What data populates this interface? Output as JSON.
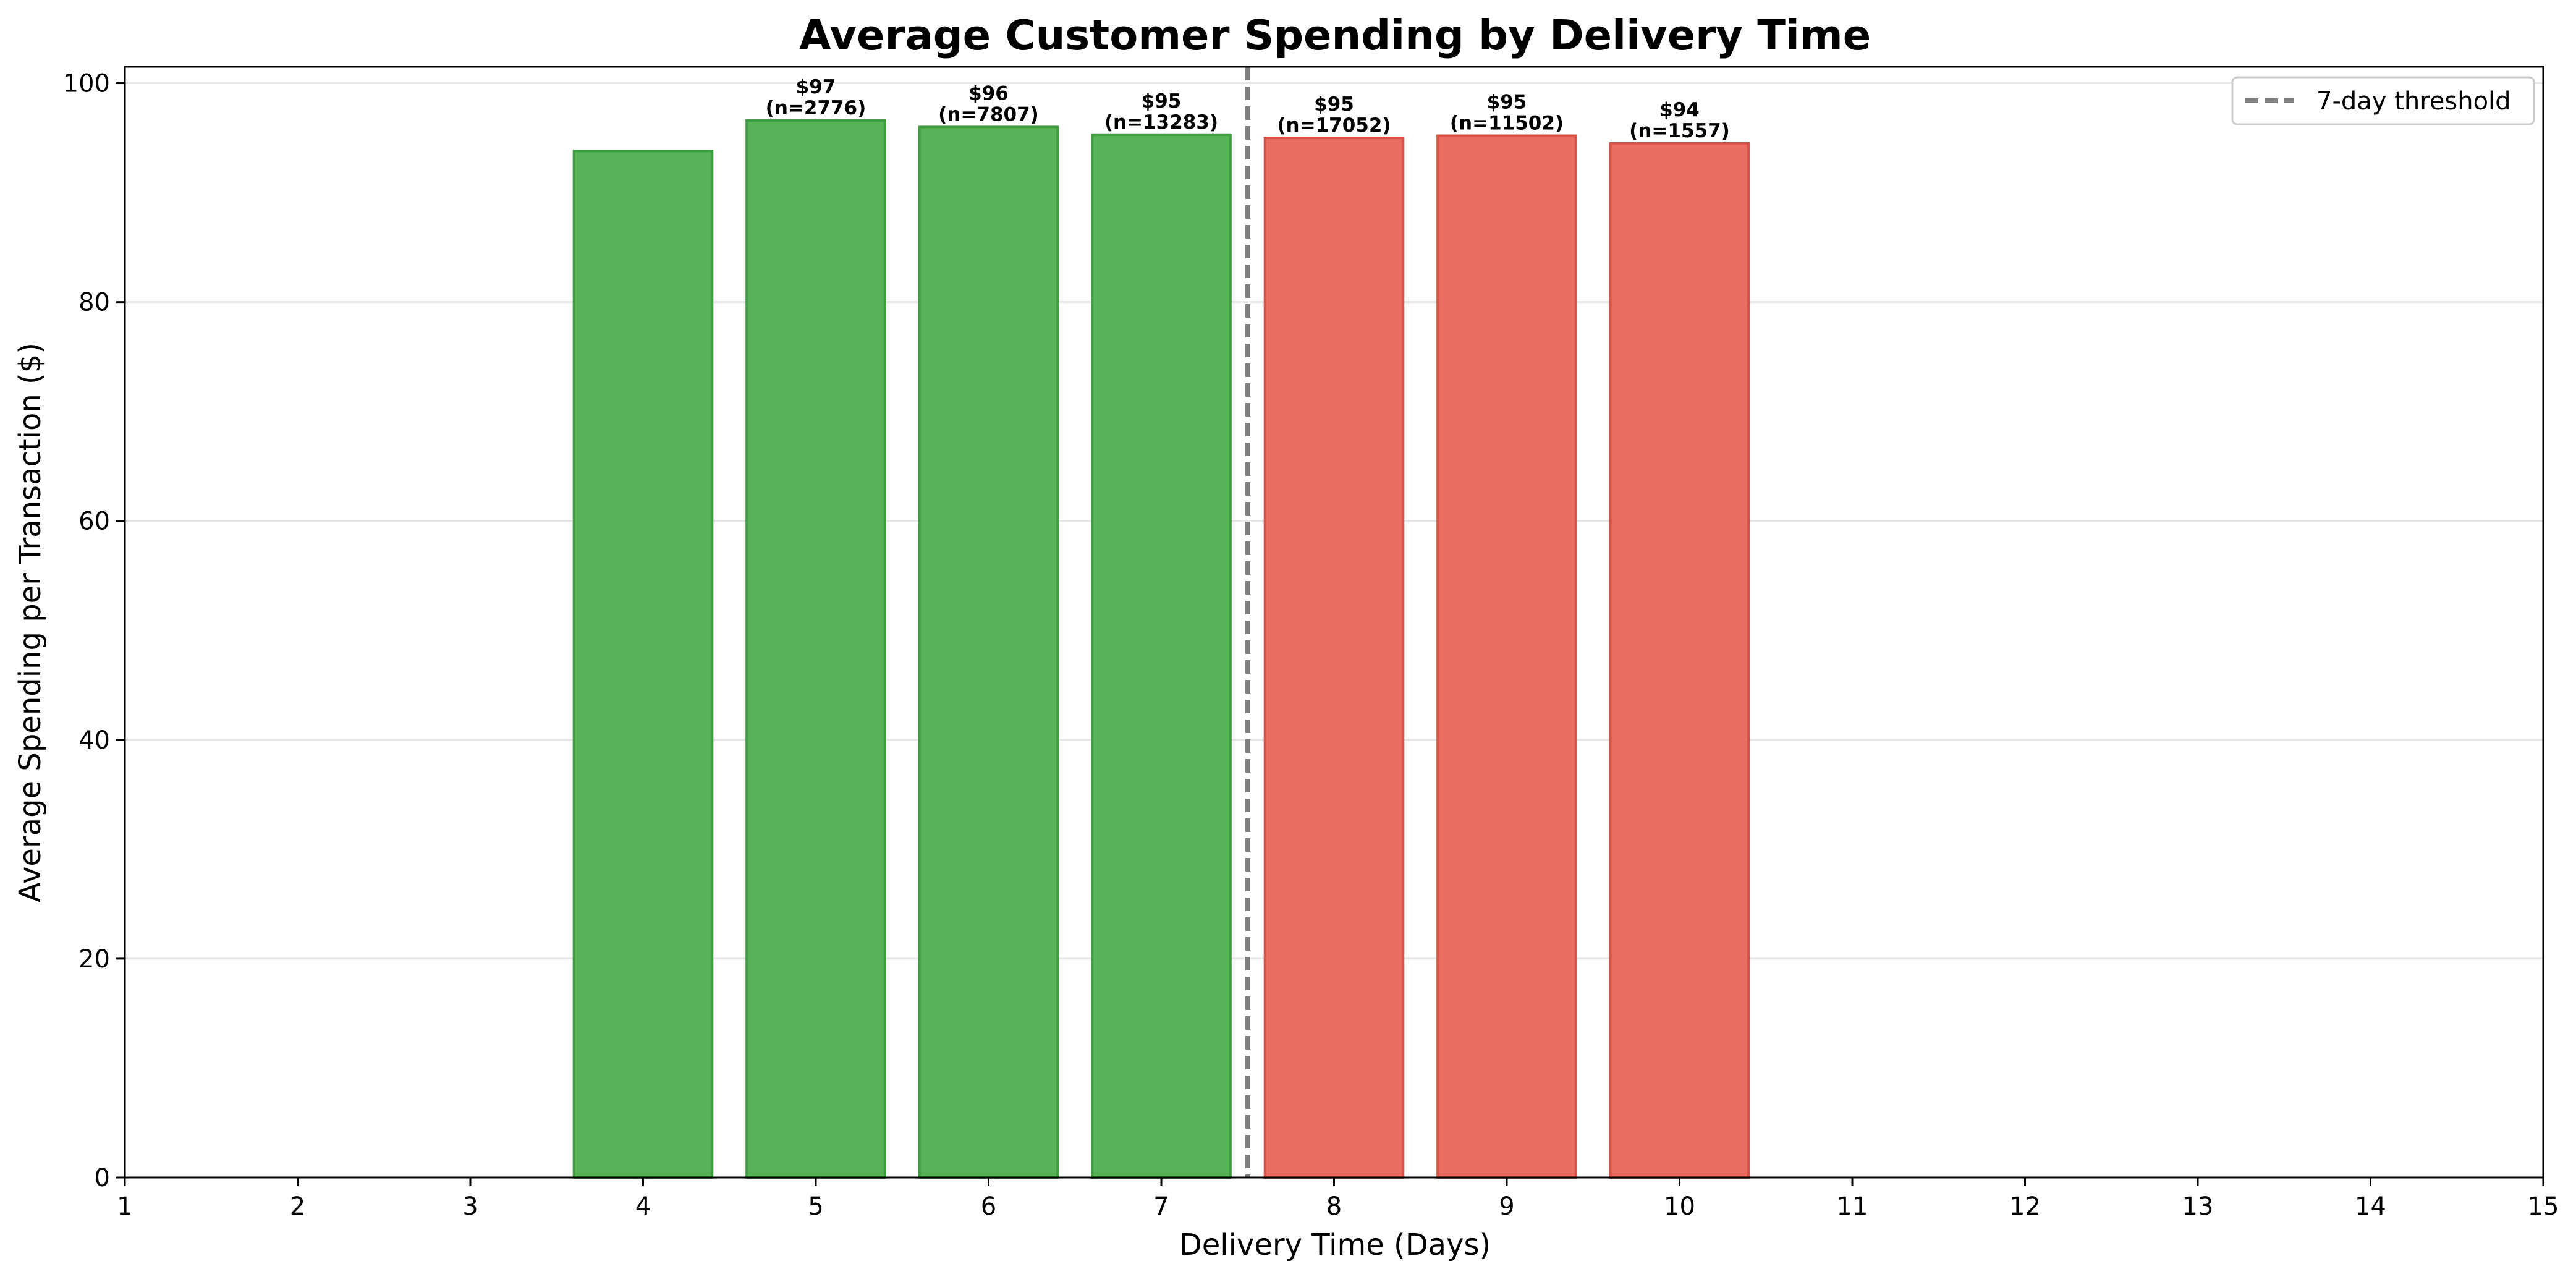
{
  "chart_data": {
    "type": "bar",
    "title": "Average Customer Spending by Delivery Time",
    "xlabel": "Delivery Time (Days)",
    "ylabel": "Average Spending per Transaction ($)",
    "xlim": [
      1,
      15
    ],
    "ylim": [
      0,
      101.5
    ],
    "xticks": [
      "1",
      "2",
      "3",
      "4",
      "5",
      "6",
      "7",
      "8",
      "9",
      "10",
      "11",
      "12",
      "13",
      "14",
      "15"
    ],
    "yticks": [
      "0",
      "20",
      "40",
      "60",
      "80",
      "100"
    ],
    "grid": "horizontal",
    "legend_position": "top-right",
    "bars": [
      {
        "x": 4,
        "value": 93.8,
        "group": "fast",
        "label_value": "",
        "label_n": ""
      },
      {
        "x": 5,
        "value": 96.6,
        "group": "fast",
        "label_value": "$97",
        "label_n": "(n=2776)"
      },
      {
        "x": 6,
        "value": 96.0,
        "group": "fast",
        "label_value": "$96",
        "label_n": "(n=7807)"
      },
      {
        "x": 7,
        "value": 95.3,
        "group": "fast",
        "label_value": "$95",
        "label_n": "(n=13283)"
      },
      {
        "x": 8,
        "value": 95.0,
        "group": "slow",
        "label_value": "$95",
        "label_n": "(n=17052)"
      },
      {
        "x": 9,
        "value": 95.2,
        "group": "slow",
        "label_value": "$95",
        "label_n": "(n=11502)"
      },
      {
        "x": 10,
        "value": 94.5,
        "group": "slow",
        "label_value": "$94",
        "label_n": "(n=1557)"
      }
    ],
    "threshold": {
      "x": 7.5,
      "label": "7-day threshold"
    },
    "colors": {
      "fast_fill": "#57b357",
      "fast_edge": "#3f9e3f",
      "slow_fill": "#eb6e62",
      "slow_edge": "#d95448",
      "threshold": "#808080",
      "grid": "#e6e6e6",
      "axis": "#000000"
    }
  }
}
